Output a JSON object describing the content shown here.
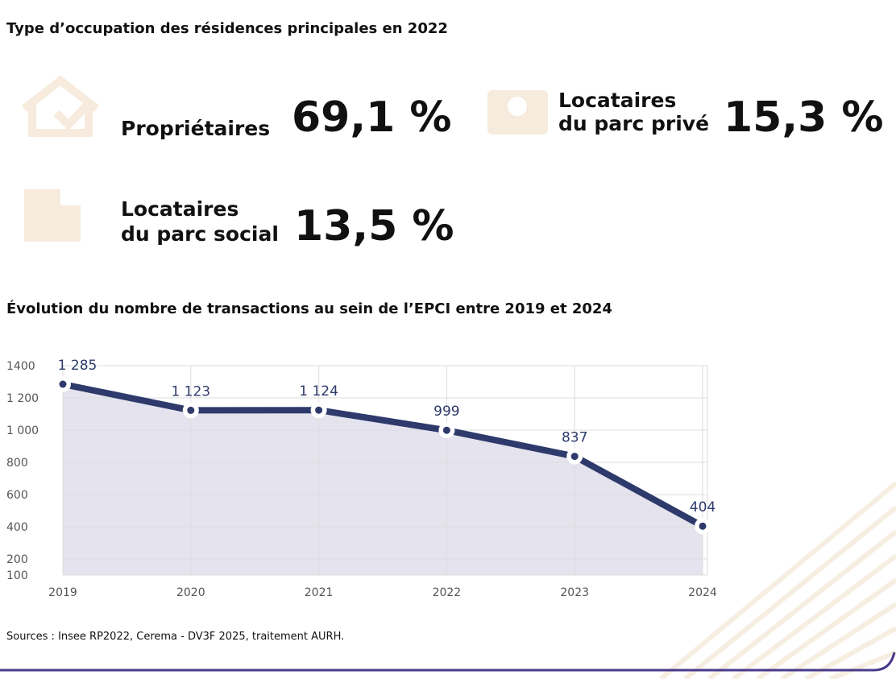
{
  "occupation": {
    "title": "Type d’occupation des résidences principales en 2022",
    "items": [
      {
        "label": [
          "Propriétaires"
        ],
        "value": 69.1,
        "value_label": "69,1 %"
      },
      {
        "label": [
          "Locataires",
          "du parc privé"
        ],
        "value": 15.3,
        "value_label": "15,3 %"
      },
      {
        "label": [
          "Locataires",
          "du parc social"
        ],
        "value": 13.5,
        "value_label": "13,5 %"
      }
    ]
  },
  "chart_data": {
    "type": "line",
    "title": "Évolution du nombre de transactions au sein de l’EPCI entre 2019 et 2024",
    "categories": [
      "2019",
      "2020",
      "2021",
      "2022",
      "2023",
      "2024"
    ],
    "series": [
      {
        "color": "#2e3a6b",
        "values": [
          1285,
          1123,
          1124,
          999,
          837,
          404
        ],
        "value_labels": [
          "1 285",
          "1 123",
          "1 124",
          "999",
          "837",
          "404"
        ]
      }
    ],
    "area_color": "#e4e3ee",
    "ylim": [
      100,
      1400
    ],
    "yticks": [
      100,
      200,
      400,
      600,
      800,
      {
        "value": 1000,
        "label": "1 000"
      },
      {
        "value": 1200,
        "label": "1 200"
      },
      {
        "value": 1400,
        "label": "1400"
      }
    ],
    "grid": true
  },
  "source": "Sources : Insee RP2022, Cerema - DV3F 2025, traitement AURH."
}
